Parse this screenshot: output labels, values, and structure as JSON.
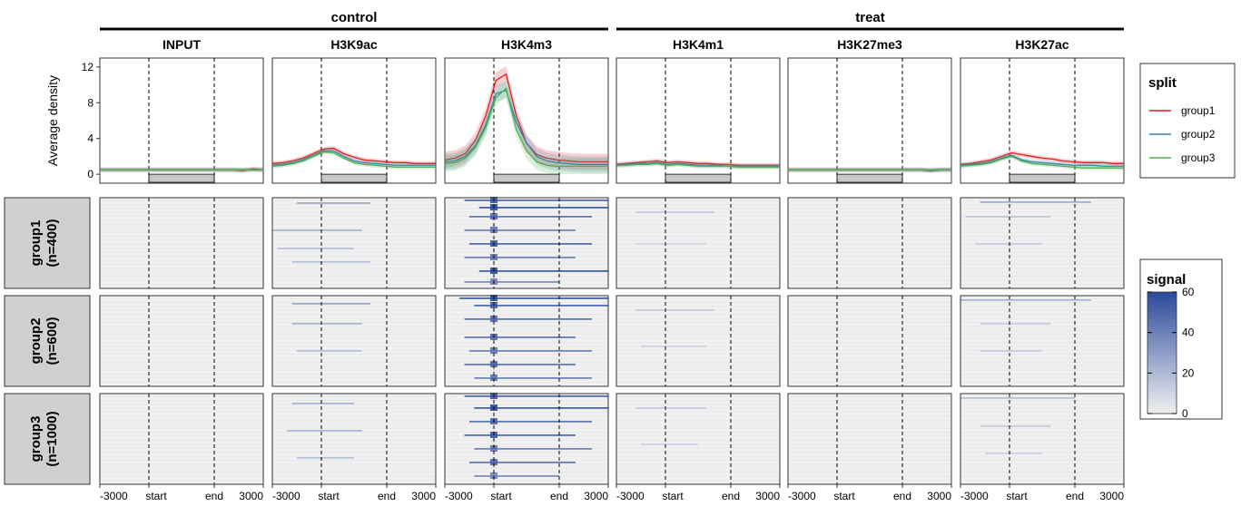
{
  "groups_top": [
    {
      "label": "control",
      "start_col": 0,
      "end_col": 2
    },
    {
      "label": "treat",
      "start_col": 3,
      "end_col": 5
    }
  ],
  "chart_data": {
    "type": "heatmap",
    "title": "",
    "marks": [
      "INPUT",
      "H3K9ac",
      "H3K4m3",
      "H3K4m1",
      "H3K27me3",
      "H3K27ac"
    ],
    "profile": {
      "type": "line",
      "ylabel": "Average density",
      "ylim": [
        -1,
        13
      ],
      "yticks": [
        0,
        4,
        8,
        12
      ],
      "xrange": [
        -3000,
        3000
      ],
      "xticklabels": [
        "-3000",
        "start",
        "end",
        "3000"
      ],
      "x": [
        "-3000",
        "-2400",
        "-1800",
        "-1200",
        "-800",
        "-400",
        "start",
        "400",
        "800",
        "1200",
        "1800",
        "2400",
        "end",
        "3600",
        "4200",
        "4800",
        "3000"
      ],
      "series": [
        {
          "name": "group1",
          "color": "#e41a1c",
          "values": {
            "INPUT": [
              0.5,
              0.5,
              0.5,
              0.5,
              0.5,
              0.5,
              0.5,
              0.5,
              0.5,
              0.5,
              0.5,
              0.5,
              0.5,
              0.5,
              0.4,
              0.6,
              0.5
            ],
            "H3K9ac": [
              1.2,
              1.3,
              1.5,
              1.8,
              2.3,
              2.8,
              2.9,
              2.3,
              1.9,
              1.6,
              1.5,
              1.4,
              1.3,
              1.3,
              1.2,
              1.2,
              1.2
            ],
            "H3K4m3": [
              1.6,
              1.8,
              2.3,
              3.8,
              6.5,
              10.5,
              11.2,
              6.5,
              3.5,
              2.2,
              1.8,
              1.6,
              1.5,
              1.4,
              1.4,
              1.4,
              1.4
            ],
            "H3K4m1": [
              1.1,
              1.2,
              1.3,
              1.4,
              1.5,
              1.3,
              1.4,
              1.3,
              1.2,
              1.2,
              1.1,
              1.1,
              1.0,
              1.0,
              1.0,
              1.0,
              1.0
            ],
            "H3K27me3": [
              0.5,
              0.5,
              0.5,
              0.5,
              0.5,
              0.5,
              0.5,
              0.5,
              0.5,
              0.5,
              0.5,
              0.5,
              0.5,
              0.5,
              0.4,
              0.5,
              0.5
            ],
            "H3K27ac": [
              1.1,
              1.2,
              1.4,
              1.6,
              2.0,
              2.4,
              2.2,
              2.0,
              1.8,
              1.7,
              1.5,
              1.4,
              1.3,
              1.3,
              1.3,
              1.2,
              1.2
            ]
          }
        },
        {
          "name": "group2",
          "color": "#377eb8",
          "values": {
            "INPUT": [
              0.5,
              0.5,
              0.5,
              0.5,
              0.5,
              0.5,
              0.5,
              0.5,
              0.5,
              0.5,
              0.5,
              0.5,
              0.5,
              0.5,
              0.5,
              0.5,
              0.5
            ],
            "H3K9ac": [
              1.0,
              1.1,
              1.3,
              1.6,
              2.1,
              2.6,
              2.6,
              2.0,
              1.5,
              1.3,
              1.2,
              1.1,
              1.0,
              1.0,
              1.0,
              1.0,
              1.0
            ],
            "H3K4m3": [
              1.4,
              1.5,
              2.0,
              3.2,
              5.5,
              9.0,
              9.4,
              5.8,
              3.5,
              2.0,
              1.5,
              1.3,
              1.2,
              1.1,
              1.1,
              1.1,
              1.1
            ],
            "H3K4m1": [
              1.0,
              1.1,
              1.2,
              1.2,
              1.3,
              1.1,
              1.2,
              1.1,
              1.0,
              1.0,
              1.0,
              0.9,
              0.9,
              0.9,
              0.9,
              0.9,
              0.9
            ],
            "H3K27me3": [
              0.5,
              0.5,
              0.5,
              0.5,
              0.5,
              0.5,
              0.5,
              0.5,
              0.5,
              0.5,
              0.5,
              0.5,
              0.5,
              0.5,
              0.4,
              0.5,
              0.5
            ],
            "H3K27ac": [
              1.0,
              1.1,
              1.2,
              1.4,
              1.8,
              2.1,
              1.6,
              1.4,
              1.3,
              1.2,
              1.1,
              1.0,
              1.0,
              1.0,
              0.9,
              0.9,
              0.9
            ]
          }
        },
        {
          "name": "group3",
          "color": "#4daf4a",
          "values": {
            "INPUT": [
              0.5,
              0.5,
              0.5,
              0.5,
              0.5,
              0.5,
              0.5,
              0.5,
              0.5,
              0.5,
              0.5,
              0.5,
              0.5,
              0.5,
              0.5,
              0.5,
              0.5
            ],
            "H3K9ac": [
              0.9,
              1.0,
              1.2,
              1.5,
              2.0,
              2.5,
              2.4,
              1.8,
              1.3,
              1.1,
              1.0,
              0.9,
              0.8,
              0.8,
              0.8,
              0.8,
              0.8
            ],
            "H3K4m3": [
              1.2,
              1.3,
              1.8,
              3.0,
              5.2,
              8.6,
              9.6,
              5.0,
              2.6,
              1.4,
              1.0,
              0.9,
              0.9,
              0.9,
              0.9,
              0.9,
              0.9
            ],
            "H3K4m1": [
              1.0,
              1.0,
              1.1,
              1.1,
              1.2,
              1.0,
              1.1,
              1.0,
              0.9,
              0.9,
              0.9,
              0.9,
              0.8,
              0.8,
              0.8,
              0.8,
              0.8
            ],
            "H3K27me3": [
              0.5,
              0.5,
              0.5,
              0.5,
              0.5,
              0.5,
              0.5,
              0.5,
              0.5,
              0.5,
              0.5,
              0.5,
              0.5,
              0.5,
              0.5,
              0.5,
              0.5
            ],
            "H3K27ac": [
              0.9,
              1.0,
              1.1,
              1.3,
              1.7,
              2.0,
              1.5,
              1.2,
              1.1,
              1.0,
              0.9,
              0.8,
              0.7,
              0.7,
              0.7,
              0.7,
              0.7
            ]
          }
        }
      ]
    },
    "rows": [
      {
        "label": "group1",
        "n_label": "(n=400)"
      },
      {
        "label": "group2",
        "n_label": "(n=600)"
      },
      {
        "label": "group3",
        "n_label": "(n=1000)"
      }
    ],
    "signal_bands": {
      "INPUT": [
        [],
        [],
        []
      ],
      "H3K9ac": [
        [
          [
            0.05,
            0.25,
            0.3,
            30
          ],
          [
            0.35,
            0.5,
            0.25,
            25
          ],
          [
            0.55,
            0.45,
            0.2,
            20
          ],
          [
            0.7,
            0.3,
            0.3,
            20
          ]
        ],
        [
          [
            0.08,
            0.3,
            0.3,
            30
          ],
          [
            0.3,
            0.3,
            0.25,
            25
          ],
          [
            0.6,
            0.25,
            0.25,
            20
          ]
        ],
        [
          [
            0.1,
            0.3,
            0.2,
            25
          ],
          [
            0.4,
            0.35,
            0.25,
            25
          ],
          [
            0.7,
            0.25,
            0.2,
            20
          ]
        ]
      ],
      "H3K4m3": [
        [
          [
            0.02,
            0.3,
            0.9,
            55
          ],
          [
            0.1,
            0.15,
            0.7,
            60
          ],
          [
            0.2,
            0.25,
            0.6,
            50
          ],
          [
            0.35,
            0.3,
            0.5,
            45
          ],
          [
            0.5,
            0.25,
            0.6,
            55
          ],
          [
            0.65,
            0.3,
            0.5,
            45
          ],
          [
            0.8,
            0.15,
            0.7,
            60
          ],
          [
            0.92,
            0.3,
            0.4,
            40
          ]
        ],
        [
          [
            0.02,
            0.35,
            0.95,
            60
          ],
          [
            0.1,
            0.2,
            0.7,
            55
          ],
          [
            0.25,
            0.3,
            0.6,
            50
          ],
          [
            0.45,
            0.3,
            0.5,
            50
          ],
          [
            0.6,
            0.25,
            0.6,
            45
          ],
          [
            0.75,
            0.3,
            0.5,
            50
          ],
          [
            0.9,
            0.2,
            0.6,
            45
          ]
        ],
        [
          [
            0.02,
            0.3,
            0.8,
            55
          ],
          [
            0.15,
            0.2,
            0.7,
            60
          ],
          [
            0.3,
            0.25,
            0.6,
            50
          ],
          [
            0.45,
            0.3,
            0.5,
            55
          ],
          [
            0.6,
            0.2,
            0.6,
            45
          ],
          [
            0.75,
            0.25,
            0.5,
            50
          ],
          [
            0.9,
            0.2,
            0.4,
            40
          ]
        ]
      ],
      "H3K4m1": [
        [
          [
            0.15,
            0.3,
            0.3,
            15
          ],
          [
            0.5,
            0.3,
            0.25,
            12
          ]
        ],
        [
          [
            0.15,
            0.3,
            0.3,
            15
          ],
          [
            0.55,
            0.25,
            0.25,
            12
          ]
        ],
        [
          [
            0.15,
            0.3,
            0.25,
            15
          ],
          [
            0.55,
            0.25,
            0.2,
            12
          ]
        ]
      ],
      "H3K27me3": [
        [],
        [],
        []
      ],
      "H3K27ac": [
        [
          [
            0.04,
            0.3,
            0.5,
            28
          ],
          [
            0.2,
            0.45,
            0.25,
            18
          ],
          [
            0.5,
            0.35,
            0.2,
            15
          ]
        ],
        [
          [
            0.04,
            0.5,
            0.5,
            25
          ],
          [
            0.3,
            0.3,
            0.25,
            15
          ],
          [
            0.6,
            0.3,
            0.2,
            15
          ]
        ],
        [
          [
            0.04,
            0.5,
            0.4,
            20
          ],
          [
            0.35,
            0.3,
            0.25,
            15
          ],
          [
            0.65,
            0.25,
            0.2,
            12
          ]
        ]
      ]
    },
    "legend": {
      "split_title": "split",
      "split_entries": [
        "group1",
        "group2",
        "group3"
      ],
      "signal_title": "signal",
      "signal_range": [
        0,
        60
      ],
      "signal_ticks": [
        0,
        20,
        40,
        60
      ],
      "low_color": "#f0f0f0",
      "high_color": "#2b4a9c"
    }
  }
}
